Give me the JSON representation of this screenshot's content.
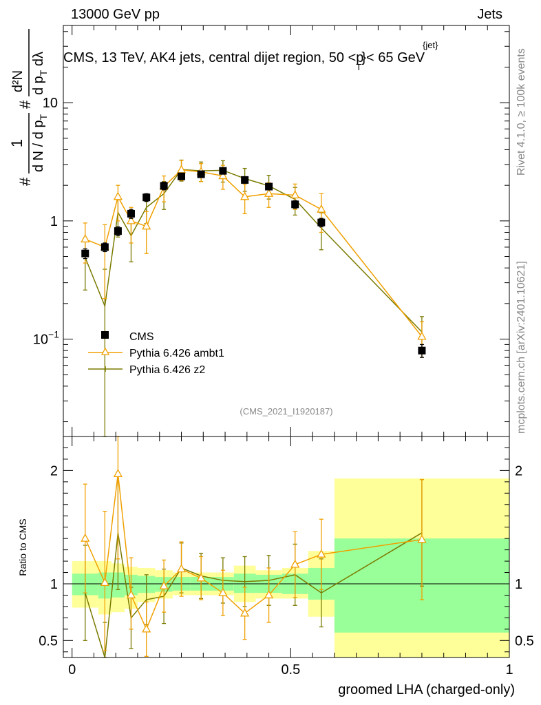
{
  "header": {
    "left": "13000 GeV pp",
    "right": "Jets"
  },
  "side_labels": {
    "rivet": "Rivet 4.1.0, ≥ 100k events",
    "mcplots": "mcplots.cern.ch [arXiv:2401.10621]"
  },
  "watermark": "(CMS_2021_I1920187)",
  "colors": {
    "data": "#000000",
    "ambt1": "#f0a000",
    "z2": "#7a7a00",
    "band_inner": "#99ff99",
    "band_outer": "#ffff99"
  },
  "chart_data": [
    {
      "type": "scatter",
      "name": "main",
      "title_parts": {
        "before": "CMS, 13 TeV, AK4 jets, central dijet region, 50 <p",
        "sup": "{jet}",
        "sub": "T",
        "after": "}< 65 GeV"
      },
      "ylabel": {
        "part1": "#",
        "frac1_num": "1",
        "frac1_den": "d N / d p",
        "frac1_den_sub": "T",
        "part2": "#",
        "frac2_num": "d²N",
        "frac2_den": "d p",
        "frac2_den_sub": "T",
        "frac2_den_tail": " dλ"
      },
      "yscale": "log",
      "ylim": [
        0.015,
        45
      ],
      "xlim": [
        -0.02,
        1.0
      ],
      "yticks_major": [
        {
          "value": 0.1,
          "base": "10",
          "exp": "−1"
        },
        {
          "value": 1,
          "base": "1",
          "exp": ""
        },
        {
          "value": 10,
          "base": "10",
          "exp": ""
        }
      ],
      "legend_position": "center-left",
      "legend": [
        "CMS",
        "Pythia 6.426 ambt1",
        "Pythia 6.426 z2"
      ],
      "series": [
        {
          "name": "CMS",
          "marker": "square",
          "x": [
            0.03,
            0.075,
            0.105,
            0.135,
            0.17,
            0.21,
            0.25,
            0.295,
            0.345,
            0.395,
            0.45,
            0.51,
            0.57,
            0.8
          ],
          "y": [
            0.53,
            0.6,
            0.82,
            1.15,
            1.58,
            1.98,
            2.38,
            2.48,
            2.65,
            2.22,
            1.95,
            1.38,
            0.97,
            0.08
          ],
          "err_lo": [
            0.05,
            0.05,
            0.07,
            0.1,
            0.12,
            0.15,
            0.15,
            0.15,
            0.15,
            0.13,
            0.12,
            0.1,
            0.08,
            0.01
          ],
          "err_hi": [
            0.05,
            0.05,
            0.07,
            0.1,
            0.12,
            0.15,
            0.15,
            0.15,
            0.15,
            0.13,
            0.12,
            0.1,
            0.08,
            0.01
          ]
        },
        {
          "name": "Pythia 6.426 ambt1",
          "marker": "triangle",
          "x": [
            0.03,
            0.075,
            0.105,
            0.135,
            0.17,
            0.21,
            0.25,
            0.295,
            0.345,
            0.395,
            0.45,
            0.51,
            0.57,
            0.8
          ],
          "y": [
            0.7,
            0.6,
            1.6,
            1.0,
            0.9,
            1.95,
            2.7,
            2.6,
            2.4,
            1.6,
            1.7,
            1.65,
            1.25,
            0.105
          ],
          "err_lo": [
            0.26,
            0.38,
            0.6,
            0.35,
            0.37,
            0.5,
            0.5,
            0.45,
            0.55,
            0.45,
            0.4,
            0.4,
            0.45,
            0.035
          ],
          "err_hi": [
            0.26,
            0.33,
            0.4,
            0.3,
            0.3,
            0.45,
            0.55,
            0.45,
            0.55,
            0.45,
            0.4,
            0.4,
            0.45,
            0.035
          ]
        },
        {
          "name": "Pythia 6.426 z2",
          "marker": "line",
          "x": [
            0.03,
            0.075,
            0.105,
            0.135,
            0.17,
            0.21,
            0.25,
            0.295,
            0.345,
            0.395,
            0.45,
            0.51,
            0.57,
            0.8
          ],
          "y": [
            0.49,
            0.19,
            1.18,
            0.75,
            1.3,
            1.7,
            2.72,
            2.65,
            2.68,
            2.28,
            1.98,
            1.52,
            0.87,
            0.115
          ],
          "err_lo": [
            0.23,
            0.18,
            0.45,
            0.3,
            0.35,
            0.45,
            0.55,
            0.5,
            0.55,
            0.5,
            0.45,
            0.4,
            0.3,
            0.04
          ],
          "err_hi": [
            0.23,
            0.2,
            0.45,
            0.3,
            0.35,
            0.45,
            0.55,
            0.5,
            0.55,
            0.5,
            0.45,
            0.4,
            0.3,
            0.04
          ]
        }
      ]
    },
    {
      "type": "scatter",
      "name": "ratio",
      "ylabel": "Ratio to CMS",
      "xlabel": "groomed LHA (charged-only)",
      "yscale": "linear",
      "ylim": [
        0.35,
        2.3
      ],
      "xlim": [
        -0.02,
        1.0
      ],
      "xticks": [
        {
          "value": 0,
          "label": "0"
        },
        {
          "value": 0.5,
          "label": "0.5"
        },
        {
          "value": 1,
          "label": "1"
        }
      ],
      "yticks": [
        {
          "value": 0.5,
          "label": "0.5"
        },
        {
          "value": 1,
          "label": "1"
        },
        {
          "value": 2,
          "label": "2"
        }
      ],
      "bands": [
        {
          "x0": 0.0,
          "x1": 0.06,
          "inner": [
            0.9,
            1.09
          ],
          "outer": [
            0.79,
            1.2
          ]
        },
        {
          "x0": 0.06,
          "x1": 0.09,
          "inner": [
            0.87,
            1.1
          ],
          "outer": [
            0.73,
            1.2
          ]
        },
        {
          "x0": 0.09,
          "x1": 0.12,
          "inner": [
            0.88,
            1.1
          ],
          "outer": [
            0.75,
            1.18
          ]
        },
        {
          "x0": 0.12,
          "x1": 0.15,
          "inner": [
            0.9,
            1.08
          ],
          "outer": [
            0.78,
            1.15
          ]
        },
        {
          "x0": 0.15,
          "x1": 0.19,
          "inner": [
            0.92,
            1.07
          ],
          "outer": [
            0.84,
            1.14
          ]
        },
        {
          "x0": 0.19,
          "x1": 0.23,
          "inner": [
            0.93,
            1.06
          ],
          "outer": [
            0.87,
            1.12
          ]
        },
        {
          "x0": 0.23,
          "x1": 0.27,
          "inner": [
            0.94,
            1.06
          ],
          "outer": [
            0.9,
            1.1
          ]
        },
        {
          "x0": 0.27,
          "x1": 0.32,
          "inner": [
            0.94,
            1.06
          ],
          "outer": [
            0.9,
            1.1
          ]
        },
        {
          "x0": 0.32,
          "x1": 0.37,
          "inner": [
            0.94,
            1.06
          ],
          "outer": [
            0.9,
            1.1
          ]
        },
        {
          "x0": 0.37,
          "x1": 0.42,
          "inner": [
            0.92,
            1.09
          ],
          "outer": [
            0.84,
            1.16
          ]
        },
        {
          "x0": 0.42,
          "x1": 0.48,
          "inner": [
            0.92,
            1.08
          ],
          "outer": [
            0.87,
            1.12
          ]
        },
        {
          "x0": 0.48,
          "x1": 0.54,
          "inner": [
            0.91,
            1.09
          ],
          "outer": [
            0.87,
            1.14
          ]
        },
        {
          "x0": 0.54,
          "x1": 0.6,
          "inner": [
            0.86,
            1.14
          ],
          "outer": [
            0.71,
            1.29
          ]
        },
        {
          "x0": 0.6,
          "x1": 1.0,
          "inner": [
            0.57,
            1.4
          ],
          "outer": [
            0.32,
            1.93
          ]
        }
      ],
      "series": [
        {
          "name": "Pythia 6.426 ambt1",
          "marker": "triangle",
          "x": [
            0.03,
            0.075,
            0.105,
            0.135,
            0.17,
            0.21,
            0.25,
            0.295,
            0.345,
            0.395,
            0.45,
            0.51,
            0.57,
            0.8
          ],
          "y": [
            1.4,
            1.01,
            1.97,
            0.9,
            0.6,
            0.98,
            1.13,
            1.05,
            0.92,
            0.74,
            0.9,
            1.17,
            1.26,
            1.39
          ],
          "err_lo": [
            0.48,
            0.6,
            0.75,
            0.3,
            0.24,
            0.23,
            0.24,
            0.19,
            0.2,
            0.23,
            0.24,
            0.29,
            0.31,
            0.53
          ],
          "err_hi": [
            0.48,
            0.63,
            0.78,
            0.33,
            0.24,
            0.23,
            0.24,
            0.19,
            0.2,
            0.23,
            0.24,
            0.29,
            0.31,
            0.53
          ]
        },
        {
          "name": "Pythia 6.426 z2",
          "marker": "line",
          "x": [
            0.03,
            0.075,
            0.105,
            0.135,
            0.17,
            0.21,
            0.25,
            0.295,
            0.345,
            0.395,
            0.45,
            0.51,
            0.57,
            0.8
          ],
          "y": [
            0.92,
            0.32,
            1.45,
            0.7,
            0.86,
            0.89,
            1.14,
            1.07,
            1.03,
            1.02,
            1.03,
            1.08,
            0.92,
            1.45
          ],
          "err_lo": [
            0.42,
            0.32,
            0.5,
            0.27,
            0.22,
            0.24,
            0.22,
            0.2,
            0.2,
            0.22,
            0.22,
            0.27,
            0.3,
            0.47
          ],
          "err_hi": [
            0.42,
            0.34,
            0.5,
            0.27,
            0.22,
            0.24,
            0.22,
            0.2,
            0.2,
            0.22,
            0.22,
            0.27,
            0.3,
            0.47
          ]
        }
      ]
    }
  ]
}
